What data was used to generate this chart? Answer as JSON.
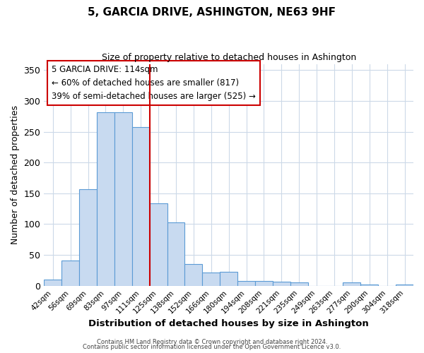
{
  "title": "5, GARCIA DRIVE, ASHINGTON, NE63 9HF",
  "subtitle": "Size of property relative to detached houses in Ashington",
  "xlabel": "Distribution of detached houses by size in Ashington",
  "ylabel": "Number of detached properties",
  "bar_labels": [
    "42sqm",
    "56sqm",
    "69sqm",
    "83sqm",
    "97sqm",
    "111sqm",
    "125sqm",
    "138sqm",
    "152sqm",
    "166sqm",
    "180sqm",
    "194sqm",
    "208sqm",
    "221sqm",
    "235sqm",
    "249sqm",
    "263sqm",
    "277sqm",
    "290sqm",
    "304sqm",
    "318sqm"
  ],
  "bar_heights": [
    10,
    41,
    157,
    281,
    281,
    258,
    134,
    103,
    35,
    22,
    23,
    8,
    8,
    7,
    5,
    0,
    0,
    5,
    2,
    0,
    2
  ],
  "bar_color": "#c8daf0",
  "bar_edge_color": "#5b9bd5",
  "vline_color": "#cc0000",
  "annotation_title": "5 GARCIA DRIVE: 114sqm",
  "annotation_line1": "← 60% of detached houses are smaller (817)",
  "annotation_line2": "39% of semi-detached houses are larger (525) →",
  "annotation_box_color": "#cc0000",
  "ylim": [
    0,
    360
  ],
  "yticks": [
    0,
    50,
    100,
    150,
    200,
    250,
    300,
    350
  ],
  "footer1": "Contains HM Land Registry data © Crown copyright and database right 2024.",
  "footer2": "Contains public sector information licensed under the Open Government Licence v3.0.",
  "background_color": "#ffffff",
  "grid_color": "#ccd9e8"
}
